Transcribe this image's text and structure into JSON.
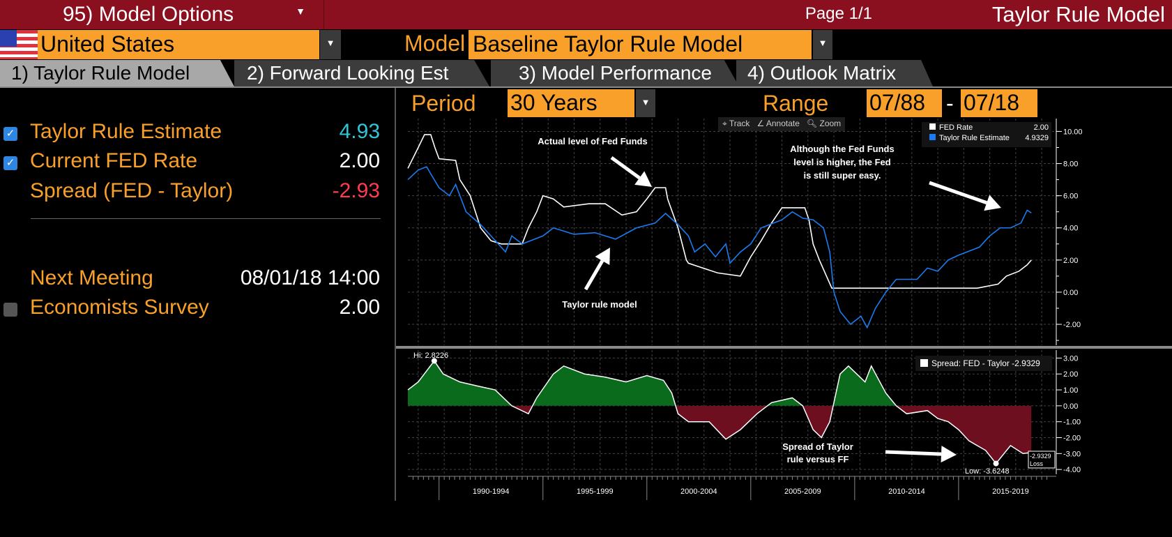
{
  "header": {
    "options_label": "95) Model Options",
    "page": "Page 1/1",
    "title": "Taylor Rule Model"
  },
  "selectors": {
    "country": "United States",
    "model_label": "Model",
    "model": "Baseline Taylor Rule Model",
    "period_label": "Period",
    "period": "30 Years",
    "range_label": "Range",
    "range_from": "07/88",
    "range_sep": "-",
    "range_to": "07/18"
  },
  "tabs": [
    "1) Taylor Rule Model",
    "2) Forward Looking Est",
    "3) Model Performance",
    "4) Outlook Matrix"
  ],
  "left": {
    "rows": [
      {
        "label": "Taylor Rule Estimate",
        "value": "4.93",
        "color": "#2fc6d8",
        "checked": true
      },
      {
        "label": "Current FED Rate",
        "value": "2.00",
        "color": "#ffffff",
        "checked": true
      },
      {
        "label": "Spread (FED - Taylor)",
        "value": "-2.93",
        "color": "#ff3b4e"
      }
    ],
    "next_meeting_label": "Next Meeting",
    "next_meeting": "08/01/18 14:00",
    "survey_label": "Economists Survey",
    "survey": "2.00"
  },
  "toolbar": {
    "track": "Track",
    "annotate": "Annotate",
    "zoom": "Zoom"
  },
  "annotations": {
    "a1": "Actual level of Fed Funds",
    "a2": "Taylor rule model",
    "a3": [
      "Although the Fed Funds",
      "level is higher, the Fed",
      "is still super easy."
    ],
    "a4": [
      "Spread of Taylor",
      "rule versus FF"
    ]
  },
  "chart_data": [
    {
      "type": "line",
      "ylim": [
        -3.3,
        10.8
      ],
      "xlim": [
        1988.5,
        2019.7
      ],
      "yticks": [
        "10.00",
        "8.00",
        "6.00",
        "4.00",
        "2.00",
        "0.00",
        "-2.00"
      ],
      "legend": [
        {
          "name": "FED Rate",
          "value": "2.00",
          "color": "#ffffff"
        },
        {
          "name": "Taylor Rule Estimate",
          "value": "4.9329",
          "color": "#1a7cf0"
        }
      ],
      "series": [
        {
          "name": "FED Rate",
          "color": "#ffffff",
          "points": [
            [
              1988.5,
              7.7
            ],
            [
              1989,
              9
            ],
            [
              1989.3,
              9.8
            ],
            [
              1989.6,
              9.8
            ],
            [
              1989.8,
              9
            ],
            [
              1990,
              8.3
            ],
            [
              1990.8,
              8.2
            ],
            [
              1991,
              7
            ],
            [
              1991.5,
              6
            ],
            [
              1992,
              4
            ],
            [
              1992.5,
              3.2
            ],
            [
              1993,
              3
            ],
            [
              1994,
              3
            ],
            [
              1994.3,
              4
            ],
            [
              1994.7,
              5
            ],
            [
              1995,
              6
            ],
            [
              1995.5,
              5.8
            ],
            [
              1996,
              5.3
            ],
            [
              1997.2,
              5.5
            ],
            [
              1998,
              5.5
            ],
            [
              1998.8,
              4.8
            ],
            [
              1999.5,
              5
            ],
            [
              2000,
              5.8
            ],
            [
              2000.4,
              6.5
            ],
            [
              2000.9,
              6.5
            ],
            [
              2001,
              5.8
            ],
            [
              2001.5,
              4
            ],
            [
              2001.9,
              2
            ],
            [
              2002,
              1.8
            ],
            [
              2003.4,
              1.2
            ],
            [
              2004.5,
              1
            ],
            [
              2005,
              2.2
            ],
            [
              2005.5,
              3.2
            ],
            [
              2006,
              4.3
            ],
            [
              2006.5,
              5.25
            ],
            [
              2007.6,
              5.25
            ],
            [
              2007.8,
              4.5
            ],
            [
              2008,
              3
            ],
            [
              2008.3,
              2
            ],
            [
              2008.9,
              0.25
            ],
            [
              2015.9,
              0.25
            ],
            [
              2016.9,
              0.5
            ],
            [
              2017.3,
              1
            ],
            [
              2017.9,
              1.3
            ],
            [
              2018.3,
              1.7
            ],
            [
              2018.5,
              2
            ]
          ]
        },
        {
          "name": "Taylor Rule Estimate",
          "color": "#1a7cf0",
          "points": [
            [
              1988.5,
              7
            ],
            [
              1989,
              7.6
            ],
            [
              1989.4,
              7.8
            ],
            [
              1990,
              6.5
            ],
            [
              1990.5,
              6
            ],
            [
              1990.8,
              6.7
            ],
            [
              1991.3,
              5
            ],
            [
              1992,
              4.2
            ],
            [
              1992.5,
              3.5
            ],
            [
              1993.2,
              2.5
            ],
            [
              1993.5,
              3.5
            ],
            [
              1994,
              3
            ],
            [
              1995,
              3.5
            ],
            [
              1995.5,
              4
            ],
            [
              1996.5,
              3.6
            ],
            [
              1997.5,
              3.7
            ],
            [
              1998.5,
              3.3
            ],
            [
              1999.5,
              4
            ],
            [
              2000.4,
              4.3
            ],
            [
              2000.9,
              4.9
            ],
            [
              2001.5,
              4.2
            ],
            [
              2002,
              3.5
            ],
            [
              2002.3,
              2.5
            ],
            [
              2002.8,
              3
            ],
            [
              2003.3,
              2.2
            ],
            [
              2003.8,
              3
            ],
            [
              2004,
              1.8
            ],
            [
              2004.5,
              2.5
            ],
            [
              2005,
              3
            ],
            [
              2005.5,
              4
            ],
            [
              2006.5,
              4.5
            ],
            [
              2007,
              5
            ],
            [
              2007.5,
              4.6
            ],
            [
              2008,
              4.5
            ],
            [
              2008.5,
              4
            ],
            [
              2008.8,
              2.5
            ],
            [
              2009,
              0
            ],
            [
              2009.3,
              -1.2
            ],
            [
              2009.8,
              -2
            ],
            [
              2010.3,
              -1.5
            ],
            [
              2010.6,
              -2.2
            ],
            [
              2011,
              -1
            ],
            [
              2011.5,
              0
            ],
            [
              2012,
              0.8
            ],
            [
              2013,
              0.8
            ],
            [
              2013.5,
              1.5
            ],
            [
              2014,
              1.3
            ],
            [
              2014.5,
              2
            ],
            [
              2015,
              2.3
            ],
            [
              2016,
              2.8
            ],
            [
              2016.5,
              3.5
            ],
            [
              2017,
              4
            ],
            [
              2017.5,
              4
            ],
            [
              2018,
              4.3
            ],
            [
              2018.3,
              5.1
            ],
            [
              2018.5,
              4.93
            ]
          ]
        }
      ]
    },
    {
      "type": "area",
      "ylim": [
        -4.3,
        3.5
      ],
      "xlim": [
        1988.5,
        2019.7
      ],
      "yticks": [
        "3.00",
        "2.00",
        "1.00",
        "0.00",
        "-1.00",
        "-2.00",
        "-3.00",
        "-4.00"
      ],
      "legend": {
        "name": "Spread: FED - Taylor",
        "value": "-2.9329"
      },
      "hi_label": "Hi: 2.8226",
      "low_label": "Low: -3.6248",
      "last_label": "-2.9329",
      "last_sub": "Loss",
      "pos_color": "#0b6b1c",
      "neg_color": "#6e0f20",
      "points": [
        [
          1988.5,
          1
        ],
        [
          1989,
          1.5
        ],
        [
          1989.77,
          2.8226
        ],
        [
          1990.2,
          2
        ],
        [
          1991,
          1.5
        ],
        [
          1992,
          1.2
        ],
        [
          1992.7,
          1
        ],
        [
          1993.5,
          0
        ],
        [
          1994.3,
          -0.5
        ],
        [
          1994.7,
          0.5
        ],
        [
          1995.5,
          2
        ],
        [
          1996,
          2.5
        ],
        [
          1997,
          2
        ],
        [
          1998,
          1.8
        ],
        [
          1999,
          1.5
        ],
        [
          2000,
          1.9
        ],
        [
          2000.8,
          1.6
        ],
        [
          2001.2,
          0.8
        ],
        [
          2001.5,
          -0.5
        ],
        [
          2002,
          -1
        ],
        [
          2003,
          -1
        ],
        [
          2003.8,
          -2.1
        ],
        [
          2004.5,
          -1.5
        ],
        [
          2005.3,
          -0.5
        ],
        [
          2006,
          0.2
        ],
        [
          2007,
          0.5
        ],
        [
          2007.5,
          0
        ],
        [
          2008,
          -1.5
        ],
        [
          2008.4,
          -2
        ],
        [
          2008.8,
          -1
        ],
        [
          2009.3,
          2
        ],
        [
          2009.7,
          2.5
        ],
        [
          2010.5,
          1.5
        ],
        [
          2010.8,
          2.5
        ],
        [
          2011.5,
          0.8
        ],
        [
          2012,
          0
        ],
        [
          2012.5,
          -0.5
        ],
        [
          2013.5,
          -0.3
        ],
        [
          2014,
          -0.8
        ],
        [
          2014.5,
          -1
        ],
        [
          2015,
          -1.5
        ],
        [
          2015.5,
          -2.2
        ],
        [
          2016.3,
          -2.8
        ],
        [
          2016.8,
          -3.6248
        ],
        [
          2017.5,
          -2.5
        ],
        [
          2018.1,
          -3
        ],
        [
          2018.5,
          -2.9329
        ]
      ]
    },
    {
      "type": "axis",
      "xticks": [
        "1990-1994",
        "1995-1999",
        "2000-2004",
        "2005-2009",
        "2010-2014",
        "2015-2019"
      ]
    }
  ]
}
